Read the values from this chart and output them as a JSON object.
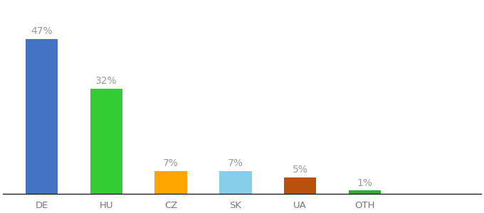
{
  "categories": [
    "DE",
    "HU",
    "CZ",
    "SK",
    "UA",
    "OTH"
  ],
  "values": [
    47,
    32,
    7,
    7,
    5,
    1
  ],
  "labels": [
    "47%",
    "32%",
    "7%",
    "7%",
    "5%",
    "1%"
  ],
  "bar_colors": [
    "#4472C4",
    "#33CC33",
    "#FFA500",
    "#87CEEB",
    "#B8520A",
    "#33AA33"
  ],
  "background_color": "#ffffff",
  "label_color": "#999999",
  "label_fontsize": 10,
  "tick_fontsize": 9.5,
  "bar_width": 0.5,
  "ylim": [
    0,
    58
  ],
  "figsize": [
    6.8,
    3.0
  ],
  "dpi": 100
}
